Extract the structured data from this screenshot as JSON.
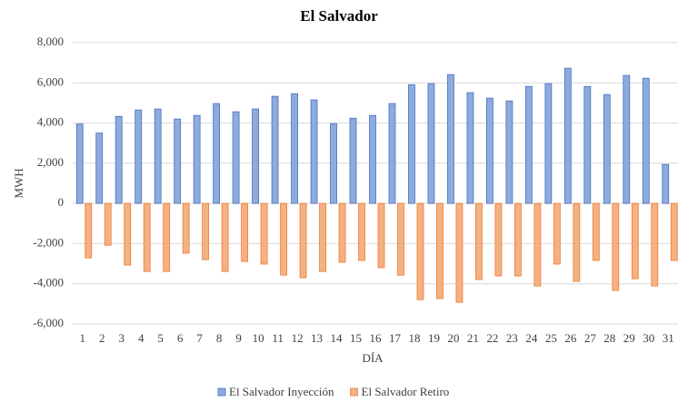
{
  "chart_data": {
    "type": "bar",
    "title": "El Salvador",
    "y_label": "MWH",
    "x_label": "DÍA",
    "categories": [
      1,
      2,
      3,
      4,
      5,
      6,
      7,
      8,
      9,
      10,
      11,
      12,
      13,
      14,
      15,
      16,
      17,
      18,
      19,
      20,
      21,
      22,
      23,
      24,
      25,
      26,
      27,
      28,
      29,
      30,
      31
    ],
    "series": [
      {
        "name": "El Salvador Inyección",
        "color": "#8faadc",
        "values": [
          3950,
          3500,
          4330,
          4650,
          4700,
          4200,
          4380,
          4970,
          4560,
          4700,
          5330,
          5460,
          5150,
          3970,
          4240,
          4380,
          4970,
          5910,
          5960,
          6410,
          5510,
          5240,
          5100,
          5820,
          5960,
          6730,
          5820,
          5420,
          6370,
          6230,
          1940
        ]
      },
      {
        "name": "El Salvador Retiro",
        "color": "#f4b183",
        "values": [
          -2710,
          -2080,
          -3070,
          -3390,
          -3390,
          -2480,
          -2800,
          -3390,
          -2890,
          -3020,
          -3570,
          -3700,
          -3390,
          -2930,
          -2840,
          -3200,
          -3570,
          -4790,
          -4740,
          -4920,
          -3790,
          -3610,
          -3610,
          -4110,
          -3020,
          -3880,
          -2840,
          -4330,
          -3750,
          -4110,
          -2840
        ]
      }
    ],
    "ylim": [
      -6000,
      8000
    ],
    "yticks": [
      {
        "value": -6000,
        "label": "-6,000"
      },
      {
        "value": -4000,
        "label": "-4,000"
      },
      {
        "value": -2000,
        "label": "-2,000"
      },
      0,
      {
        "value": 2000,
        "label": "2,000"
      },
      {
        "value": 4000,
        "label": "4,000"
      },
      {
        "value": 6000,
        "label": "6,000"
      },
      {
        "value": 8000,
        "label": "8,000"
      }
    ],
    "grid": true
  }
}
